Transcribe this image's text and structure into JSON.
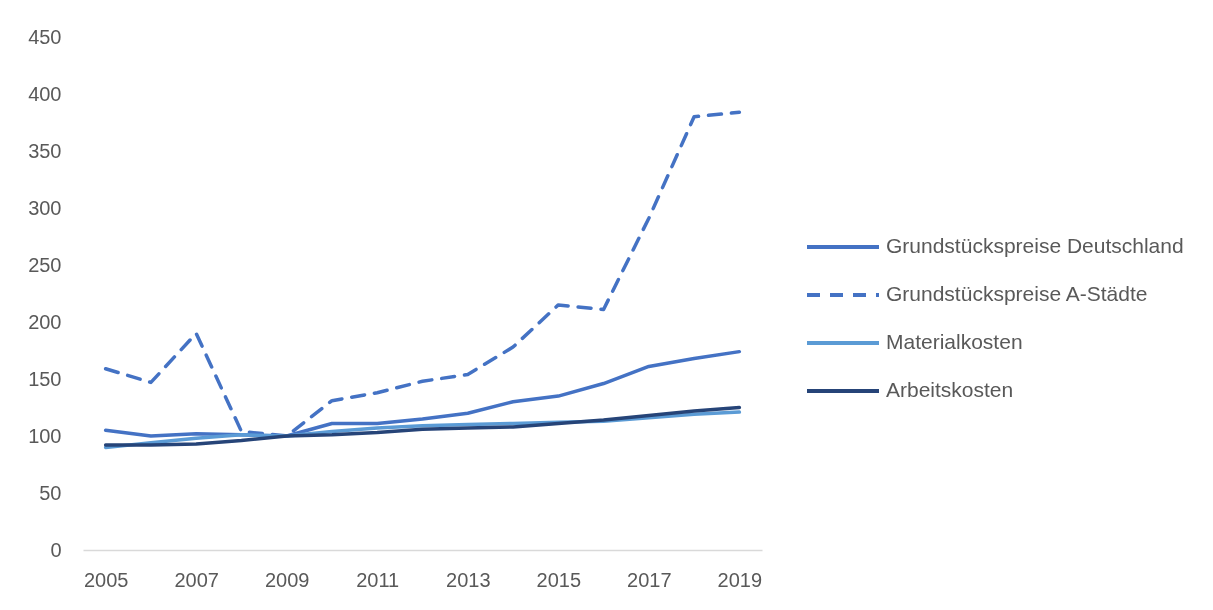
{
  "chart_data": {
    "type": "line",
    "categories": [
      "2005",
      null,
      "2007",
      null,
      "2009",
      null,
      "2011",
      null,
      "2013",
      null,
      "2015",
      null,
      "2017",
      null,
      "2019"
    ],
    "series": [
      {
        "name": "Grundstückspreise Deutschland",
        "color": "#4472c4",
        "values": [
          105,
          100,
          102,
          101,
          100,
          111,
          111,
          115,
          120,
          130,
          135,
          146,
          161,
          168,
          174
        ]
      },
      {
        "name": "Grundstückspreise A-Städte",
        "color": "#4472c4",
        "line_style": "dashed",
        "values": [
          159,
          147,
          190,
          104,
          100,
          131,
          138,
          148,
          154,
          178,
          215,
          211,
          291,
          380,
          384
        ]
      },
      {
        "name": "Materialkosten",
        "color": "#5b9bd5",
        "values": [
          90,
          94,
          98,
          101,
          100,
          104,
          107,
          109,
          110,
          111,
          112,
          113,
          116,
          119,
          121
        ]
      },
      {
        "name": "Arbeitskosten",
        "color": "#264478",
        "values": [
          92,
          92,
          93,
          96,
          100,
          101,
          103,
          106,
          107,
          108,
          111,
          114,
          118,
          122,
          125
        ]
      }
    ],
    "ylim": [
      0,
      450
    ],
    "yticks": [
      0,
      50,
      100,
      150,
      200,
      250,
      300,
      350,
      400,
      450
    ],
    "legend": "right",
    "line_style": "solid"
  }
}
